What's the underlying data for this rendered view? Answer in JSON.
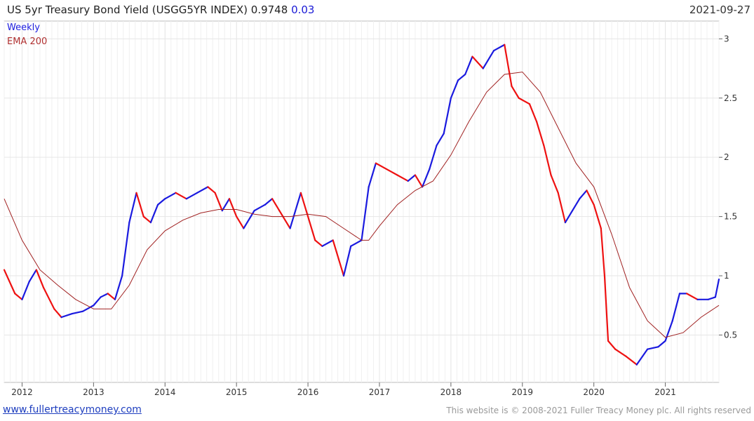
{
  "header": {
    "title": "US 5yr Treasury Bond Yield (USGG5YR INDEX) 0.9748",
    "change": "0.03",
    "date": "2021-09-27"
  },
  "legend": {
    "series1": "Weekly",
    "series2": "EMA 200"
  },
  "footer": {
    "website": "www.fullertreacymoney.com",
    "copyright": "This website is © 2008-2021 Fuller Treacy Money plc. All rights reserved"
  },
  "colors": {
    "up": "#1a1adf",
    "down": "#ee1111",
    "ema": "#a02020",
    "grid": "#e6e6e6"
  },
  "chart_data": {
    "type": "line",
    "x_tick_labels": [
      "2012",
      "2013",
      "2014",
      "2015",
      "2016",
      "2017",
      "2018",
      "2019",
      "2020",
      "2021"
    ],
    "y_tick_labels": [
      "0.5",
      "1",
      "1.5",
      "2",
      "2.5",
      "3"
    ],
    "ylim": [
      0.1,
      3.15
    ],
    "xlim": [
      2011.75,
      2021.75
    ],
    "grid": true,
    "legend_position": "top-left",
    "series": [
      {
        "name": "Weekly",
        "x": [
          2011.75,
          2011.9,
          2012.0,
          2012.1,
          2012.2,
          2012.3,
          2012.45,
          2012.55,
          2012.7,
          2012.85,
          2013.0,
          2013.1,
          2013.2,
          2013.3,
          2013.4,
          2013.5,
          2013.6,
          2013.7,
          2013.8,
          2013.9,
          2014.0,
          2014.15,
          2014.3,
          2014.45,
          2014.6,
          2014.7,
          2014.8,
          2014.9,
          2015.0,
          2015.1,
          2015.25,
          2015.4,
          2015.5,
          2015.6,
          2015.75,
          2015.9,
          2016.0,
          2016.1,
          2016.2,
          2016.35,
          2016.5,
          2016.6,
          2016.75,
          2016.85,
          2016.95,
          2017.1,
          2017.25,
          2017.4,
          2017.5,
          2017.6,
          2017.7,
          2017.8,
          2017.9,
          2018.0,
          2018.1,
          2018.2,
          2018.3,
          2018.45,
          2018.6,
          2018.75,
          2018.85,
          2018.95,
          2019.1,
          2019.2,
          2019.3,
          2019.4,
          2019.5,
          2019.6,
          2019.7,
          2019.8,
          2019.9,
          2020.0,
          2020.1,
          2020.15,
          2020.2,
          2020.3,
          2020.45,
          2020.6,
          2020.75,
          2020.9,
          2021.0,
          2021.1,
          2021.2,
          2021.3,
          2021.45,
          2021.6,
          2021.7,
          2021.75
        ],
        "values": [
          1.05,
          0.85,
          0.8,
          0.95,
          1.05,
          0.9,
          0.72,
          0.65,
          0.68,
          0.7,
          0.75,
          0.82,
          0.85,
          0.8,
          1.0,
          1.45,
          1.7,
          1.5,
          1.45,
          1.6,
          1.65,
          1.7,
          1.65,
          1.7,
          1.75,
          1.7,
          1.55,
          1.65,
          1.5,
          1.4,
          1.55,
          1.6,
          1.65,
          1.55,
          1.4,
          1.7,
          1.5,
          1.3,
          1.25,
          1.3,
          1.0,
          1.25,
          1.3,
          1.75,
          1.95,
          1.9,
          1.85,
          1.8,
          1.85,
          1.75,
          1.9,
          2.1,
          2.2,
          2.5,
          2.65,
          2.7,
          2.85,
          2.75,
          2.9,
          2.95,
          2.6,
          2.5,
          2.45,
          2.3,
          2.1,
          1.85,
          1.7,
          1.45,
          1.55,
          1.65,
          1.72,
          1.6,
          1.4,
          1.0,
          0.45,
          0.38,
          0.32,
          0.25,
          0.38,
          0.4,
          0.45,
          0.62,
          0.85,
          0.85,
          0.8,
          0.8,
          0.82,
          0.97
        ]
      },
      {
        "name": "EMA 200",
        "x": [
          2011.75,
          2012.0,
          2012.25,
          2012.5,
          2012.75,
          2013.0,
          2013.25,
          2013.5,
          2013.75,
          2014.0,
          2014.25,
          2014.5,
          2014.75,
          2015.0,
          2015.25,
          2015.5,
          2015.75,
          2016.0,
          2016.25,
          2016.5,
          2016.75,
          2016.85,
          2017.0,
          2017.25,
          2017.5,
          2017.75,
          2018.0,
          2018.25,
          2018.5,
          2018.75,
          2019.0,
          2019.25,
          2019.5,
          2019.75,
          2020.0,
          2020.25,
          2020.5,
          2020.75,
          2021.0,
          2021.25,
          2021.5,
          2021.75
        ],
        "values": [
          1.65,
          1.3,
          1.05,
          0.92,
          0.8,
          0.72,
          0.72,
          0.92,
          1.22,
          1.38,
          1.47,
          1.53,
          1.56,
          1.56,
          1.52,
          1.5,
          1.5,
          1.52,
          1.5,
          1.4,
          1.3,
          1.3,
          1.42,
          1.6,
          1.72,
          1.8,
          2.02,
          2.3,
          2.55,
          2.7,
          2.72,
          2.55,
          2.25,
          1.95,
          1.75,
          1.35,
          0.9,
          0.62,
          0.48,
          0.52,
          0.65,
          0.75
        ]
      }
    ]
  }
}
